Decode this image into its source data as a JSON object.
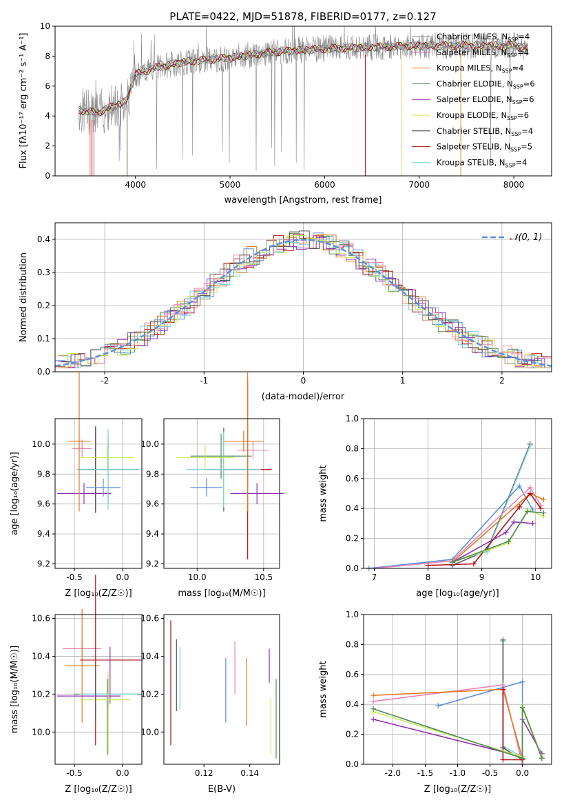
{
  "figure": {
    "title": "PLATE=0422, MJD=51878, FIBERID=0177, z=0.127"
  },
  "chart_data": [
    {
      "id": "spectrum",
      "type": "line",
      "xlabel": "wavelength [Angstrom, rest frame]",
      "ylabel": "Flux [fλ10⁻¹⁷ erg cm⁻² s⁻¹ A⁻¹]",
      "xlim": [
        3150,
        8400
      ],
      "ylim": [
        0,
        10
      ],
      "xticks": [
        4000,
        5000,
        6000,
        7000,
        8000
      ],
      "yticks": [
        0,
        2,
        4,
        6,
        8,
        10
      ],
      "grid": false,
      "legend_position": "top-right",
      "continuum_x": [
        3400,
        3600,
        3700,
        3800,
        3900,
        4000,
        4200,
        4500,
        5000,
        5500,
        6000,
        6500,
        7000,
        7500,
        8000,
        8100
      ],
      "continuum_y": [
        4.4,
        4.2,
        4.5,
        4.7,
        5.0,
        6.8,
        7.2,
        7.6,
        7.9,
        8.3,
        8.5,
        8.6,
        8.7,
        8.7,
        8.7,
        8.6
      ],
      "series": [
        {
          "name": "Chabrier MILES, N",
          "sub": "SSP",
          "tail": "=4",
          "color": "#888888"
        },
        {
          "name": "Salpeter MILES, N",
          "sub": "SSP",
          "tail": "=4",
          "color": "#c75dbd"
        },
        {
          "name": "Kroupa MILES, N",
          "sub": "SSP",
          "tail": "=4",
          "color": "#e07b1f"
        },
        {
          "name": "Chabrier ELODIE, N",
          "sub": "SSP",
          "tail": "=6",
          "color": "#4e8a55"
        },
        {
          "name": "Salpeter ELODIE, N",
          "sub": "SSP",
          "tail": "=6",
          "color": "#8e2fb0"
        },
        {
          "name": "Kroupa ELODIE, N",
          "sub": "SSP",
          "tail": "=6",
          "color": "#d9e04a"
        },
        {
          "name": "Chabrier STELIB, N",
          "sub": "SSP",
          "tail": "=4",
          "color": "#333333"
        },
        {
          "name": "Salpeter STELIB, N",
          "sub": "SSP",
          "tail": "=5",
          "color": "#b01010"
        },
        {
          "name": "Kroupa STELIB, N",
          "sub": "SSP",
          "tail": "=4",
          "color": "#7fd4dd"
        }
      ]
    },
    {
      "id": "residuals",
      "type": "line",
      "xlabel": "(data-model)/error",
      "ylabel": "Normed distribution",
      "xlim": [
        -2.5,
        2.5
      ],
      "ylim": [
        0,
        0.45
      ],
      "xticks": [
        -2,
        -1,
        0,
        1,
        2
      ],
      "yticks": [
        0.0,
        0.1,
        0.2,
        0.3,
        0.4
      ],
      "grid": true,
      "legend_position": "top-right",
      "legend_label": "𝒩(0, 1)",
      "gaussian_color": "#5b8fd9",
      "histogram_colors": [
        "#5b8fd9",
        "#e07b1f",
        "#4e8a55",
        "#b01010",
        "#8e2fb0",
        "#7fd4dd",
        "#e882b4",
        "#c7e85a",
        "#555555"
      ]
    },
    {
      "id": "age-Z",
      "type": "scatter",
      "xlabel": "Z [log₁₀(Z/Z☉)]",
      "ylabel": "age  [log₁₀(age/yr)]",
      "xlim": [
        -0.7,
        0.2
      ],
      "ylim": [
        9.17,
        10.17
      ],
      "xticks": [
        -0.5,
        0.0
      ],
      "yticks": [
        9.2,
        9.4,
        9.6,
        9.8,
        10.0
      ],
      "grid": true,
      "points": [
        {
          "x": -0.45,
          "y": 10.02,
          "xerr": 0.12,
          "yerr": 0.07,
          "color": "#e07b1f"
        },
        {
          "x": -0.42,
          "y": 9.97,
          "xerr": 0.1,
          "yerr": 0.06,
          "color": "#e882b4"
        },
        {
          "x": -0.28,
          "y": 9.83,
          "xerr": 0.18,
          "yerr": 0.28,
          "color": "#b01010"
        },
        {
          "x": -0.28,
          "y": 9.83,
          "xerr": 0.15,
          "yerr": 0.29,
          "color": "#555555"
        },
        {
          "x": -0.4,
          "y": 9.67,
          "xerr": 0.28,
          "yerr": 0.07,
          "color": "#8e2fb0"
        },
        {
          "x": -0.15,
          "y": 9.83,
          "xerr": 0.32,
          "yerr": 0.23,
          "color": "#4e8a55"
        },
        {
          "x": -0.15,
          "y": 9.83,
          "xerr": 0.32,
          "yerr": 0.27,
          "color": "#7fd4dd"
        },
        {
          "x": -0.45,
          "y": 10.02,
          "xerr": 0.03,
          "yerr": 0.47,
          "color": "#e07b1f"
        },
        {
          "x": -0.2,
          "y": 9.71,
          "xerr": 0.18,
          "yerr": 0.06,
          "color": "#5b8fd9"
        },
        {
          "x": -0.16,
          "y": 9.91,
          "xerr": 0.28,
          "yerr": 0.08,
          "color": "#c7e85a"
        }
      ]
    },
    {
      "id": "age-mass",
      "type": "scatter",
      "xlabel": "mass [log₁₀(M/M☉)]",
      "ylabel": "",
      "xlim": [
        9.75,
        10.62
      ],
      "ylim": [
        9.17,
        10.17
      ],
      "xticks": [
        10.0,
        10.5
      ],
      "yticks": [
        9.2,
        9.4,
        9.6,
        9.8,
        10.0
      ],
      "grid": true,
      "points": [
        {
          "x": 10.35,
          "y": 10.02,
          "xerr": 0.15,
          "yerr": 0.07,
          "color": "#e07b1f"
        },
        {
          "x": 10.42,
          "y": 9.96,
          "xerr": 0.12,
          "yerr": 0.06,
          "color": "#e882b4"
        },
        {
          "x": 10.38,
          "y": 9.83,
          "xerr": 0.18,
          "yerr": 0.6,
          "color": "#b01010"
        },
        {
          "x": 10.2,
          "y": 9.83,
          "xerr": 0.15,
          "yerr": 0.28,
          "color": "#555555"
        },
        {
          "x": 10.45,
          "y": 9.67,
          "xerr": 0.2,
          "yerr": 0.07,
          "color": "#8e2fb0"
        },
        {
          "x": 10.18,
          "y": 9.92,
          "xerr": 0.23,
          "yerr": 0.15,
          "color": "#4e8a55"
        },
        {
          "x": 10.2,
          "y": 9.83,
          "xerr": 0.28,
          "yerr": 0.25,
          "color": "#7fd4dd"
        },
        {
          "x": 10.38,
          "y": 10.02,
          "xerr": 0.02,
          "yerr": 0.47,
          "color": "#e07b1f"
        },
        {
          "x": 10.07,
          "y": 9.71,
          "xerr": 0.12,
          "yerr": 0.06,
          "color": "#5b8fd9"
        },
        {
          "x": 10.06,
          "y": 9.91,
          "xerr": 0.22,
          "yerr": 0.08,
          "color": "#c7e85a"
        }
      ]
    },
    {
      "id": "weight-age",
      "type": "line",
      "xlabel": "age  [log₁₀(age/yr)]",
      "ylabel": "mass weight",
      "xlim": [
        6.8,
        10.3
      ],
      "ylim": [
        0.0,
        1.0
      ],
      "xticks": [
        7,
        8,
        9,
        10
      ],
      "yticks": [
        0.0,
        0.2,
        0.4,
        0.6,
        0.8,
        1.0
      ],
      "grid": true,
      "series": [
        {
          "color": "#555555",
          "x": [
            8.45,
            9.1,
            9.9
          ],
          "y": [
            0.02,
            0.12,
            0.83
          ]
        },
        {
          "color": "#7fd4dd",
          "x": [
            8.45,
            9.1,
            9.9
          ],
          "y": [
            0.05,
            0.11,
            0.82
          ]
        },
        {
          "color": "#5b8fd9",
          "x": [
            6.9,
            8.45,
            9.7,
            9.95
          ],
          "y": [
            0.0,
            0.06,
            0.55,
            0.39
          ]
        },
        {
          "color": "#e882b4",
          "x": [
            7.0,
            8.45,
            9.9,
            10.1
          ],
          "y": [
            0.0,
            0.05,
            0.54,
            0.42
          ]
        },
        {
          "color": "#e07b1f",
          "x": [
            8.45,
            9.9,
            10.15
          ],
          "y": [
            0.04,
            0.5,
            0.46
          ]
        },
        {
          "color": "#b01010",
          "x": [
            8.0,
            8.85,
            9.7,
            9.9,
            10.1
          ],
          "y": [
            0.02,
            0.03,
            0.41,
            0.5,
            0.4
          ]
        },
        {
          "color": "#8e2fb0",
          "x": [
            8.45,
            9.45,
            9.6,
            9.95
          ],
          "y": [
            0.04,
            0.24,
            0.31,
            0.3
          ]
        },
        {
          "color": "#c7e85a",
          "x": [
            8.45,
            9.5,
            9.85,
            10.15
          ],
          "y": [
            0.04,
            0.17,
            0.39,
            0.35
          ]
        },
        {
          "color": "#4e8a55",
          "x": [
            8.45,
            9.5,
            9.85,
            10.15
          ],
          "y": [
            0.04,
            0.18,
            0.38,
            0.37
          ]
        }
      ]
    },
    {
      "id": "mass-Z",
      "type": "scatter",
      "xlabel": "Z [log₁₀(Z/Z☉)]",
      "ylabel": "mass [log₁₀(M/M☉)]",
      "xlim": [
        -0.7,
        0.2
      ],
      "ylim": [
        9.83,
        10.62
      ],
      "xticks": [
        -0.5,
        0.0
      ],
      "yticks": [
        10.0,
        10.2,
        10.4,
        10.6
      ],
      "grid": true,
      "points": [
        {
          "x": -0.42,
          "y": 10.44,
          "xerr": 0.2,
          "yerr": 0.04,
          "color": "#e882b4"
        },
        {
          "x": -0.42,
          "y": 10.35,
          "xerr": 0.18,
          "yerr": 0.3,
          "color": "#e07b1f"
        },
        {
          "x": -0.12,
          "y": 10.38,
          "xerr": 0.32,
          "yerr": 0.0,
          "color": "#b01010"
        },
        {
          "x": -0.28,
          "y": 10.38,
          "xerr": 0.0,
          "yerr": 0.45,
          "color": "#b01010"
        },
        {
          "x": -0.13,
          "y": 10.3,
          "xerr": 0.0,
          "yerr": 0.15,
          "color": "#8e2fb0"
        },
        {
          "x": -0.35,
          "y": 10.19,
          "xerr": 0.33,
          "yerr": 0.0,
          "color": "#8e2fb0"
        },
        {
          "x": -0.15,
          "y": 10.2,
          "xerr": 0.35,
          "yerr": 0.08,
          "color": "#4e8a55"
        },
        {
          "x": -0.16,
          "y": 10.08,
          "xerr": 0.0,
          "yerr": 0.2,
          "color": "#4e8a55"
        },
        {
          "x": -0.15,
          "y": 10.2,
          "xerr": 0.3,
          "yerr": 0.04,
          "color": "#7fd4dd"
        },
        {
          "x": -0.18,
          "y": 10.17,
          "xerr": 0.26,
          "yerr": 0.0,
          "color": "#c7e85a"
        },
        {
          "x": -0.15,
          "y": 10.1,
          "xerr": 0.0,
          "yerr": 0.22,
          "color": "#c7e85a"
        },
        {
          "x": -0.28,
          "y": 10.2,
          "xerr": 0.0,
          "yerr": 0.15,
          "color": "#555555"
        }
      ]
    },
    {
      "id": "mass-ebv",
      "type": "scatter",
      "xlabel": "E(B-V)",
      "ylabel": "",
      "xlim": [
        0.1025,
        0.153
      ],
      "ylim": [
        9.83,
        10.62
      ],
      "xticks": [
        0.12,
        0.14
      ],
      "yticks": [
        10.0,
        10.2,
        10.4,
        10.6
      ],
      "grid": false,
      "segments": [
        {
          "x": 0.1055,
          "y0": 9.93,
          "y1": 10.59,
          "color": "#b01010"
        },
        {
          "x": 0.108,
          "y0": 10.11,
          "y1": 10.49,
          "color": "#555555"
        },
        {
          "x": 0.1095,
          "y0": 10.12,
          "y1": 10.45,
          "color": "#7fd4dd"
        },
        {
          "x": 0.1295,
          "y0": 10.05,
          "y1": 10.39,
          "color": "#5b8fd9"
        },
        {
          "x": 0.1335,
          "y0": 10.2,
          "y1": 10.48,
          "color": "#e882b4"
        },
        {
          "x": 0.1385,
          "y0": 10.03,
          "y1": 10.39,
          "color": "#e07b1f"
        },
        {
          "x": 0.1485,
          "y0": 10.26,
          "y1": 10.44,
          "color": "#8e2fb0"
        },
        {
          "x": 0.1492,
          "y0": 9.88,
          "y1": 10.18,
          "color": "#c7e85a"
        },
        {
          "x": 0.1515,
          "y0": 9.86,
          "y1": 10.28,
          "color": "#4e8a55"
        }
      ]
    },
    {
      "id": "weight-Z",
      "type": "line",
      "xlabel": "Z [log₁₀(Z/Z☉)]",
      "ylabel": "mass weight",
      "xlim": [
        -2.45,
        0.45
      ],
      "ylim": [
        0.0,
        1.0
      ],
      "xticks": [
        -2.0,
        -1.5,
        -1.0,
        -0.5,
        0.0
      ],
      "yticks": [
        0.0,
        0.2,
        0.4,
        0.6,
        0.8,
        1.0
      ],
      "grid": true,
      "series": [
        {
          "color": "#7fd4dd",
          "x": [
            -0.3,
            -0.3,
            0.0,
            0.0
          ],
          "y": [
            0.82,
            0.12,
            0.05,
            0.0
          ]
        },
        {
          "color": "#555555",
          "x": [
            -0.3,
            -0.3,
            0.0
          ],
          "y": [
            0.83,
            0.11,
            0.03
          ]
        },
        {
          "color": "#5b8fd9",
          "x": [
            -1.3,
            0.0,
            0.0
          ],
          "y": [
            0.39,
            0.55,
            0.05
          ]
        },
        {
          "color": "#e882b4",
          "x": [
            -2.3,
            -0.3,
            0.0
          ],
          "y": [
            0.42,
            0.53,
            0.0
          ]
        },
        {
          "color": "#e07b1f",
          "x": [
            -2.3,
            -0.3,
            0.0
          ],
          "y": [
            0.46,
            0.5,
            0.04
          ]
        },
        {
          "color": "#b01010",
          "x": [
            -0.3,
            -0.3,
            0.0
          ],
          "y": [
            0.5,
            0.03,
            0.03
          ]
        },
        {
          "color": "#8e2fb0",
          "x": [
            -2.3,
            0.0,
            0.0,
            0.3,
            0.3
          ],
          "y": [
            0.3,
            0.05,
            0.3,
            0.07,
            0.04
          ]
        },
        {
          "color": "#c7e85a",
          "x": [
            -2.3,
            0.0,
            0.0,
            0.3
          ],
          "y": [
            0.35,
            0.05,
            0.39,
            0.05
          ]
        },
        {
          "color": "#4e8a55",
          "x": [
            -2.3,
            0.0,
            0.0,
            0.3
          ],
          "y": [
            0.37,
            0.04,
            0.38,
            0.04
          ]
        }
      ]
    }
  ]
}
